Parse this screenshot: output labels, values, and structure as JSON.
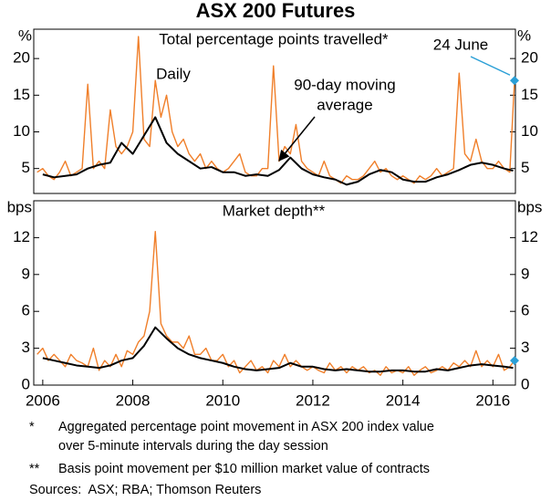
{
  "title": "ASX 200 Futures",
  "chart_data": [
    {
      "type": "line",
      "subtitle": "Total percentage points travelled*",
      "unit": "%",
      "xlim": [
        2005.8,
        2016.5
      ],
      "ylim": [
        1.6,
        24
      ],
      "yticks": [
        5,
        10,
        15,
        20
      ],
      "series": [
        {
          "name": "Daily",
          "color": "#f07f2a",
          "x": [
            2005.875,
            2006,
            2006.125,
            2006.25,
            2006.375,
            2006.5,
            2006.625,
            2006.75,
            2006.875,
            2007,
            2007.125,
            2007.25,
            2007.375,
            2007.5,
            2007.625,
            2007.75,
            2007.875,
            2008,
            2008.125,
            2008.25,
            2008.375,
            2008.5,
            2008.625,
            2008.75,
            2008.875,
            2009,
            2009.125,
            2009.25,
            2009.375,
            2009.5,
            2009.625,
            2009.75,
            2009.875,
            2010,
            2010.125,
            2010.25,
            2010.375,
            2010.5,
            2010.625,
            2010.75,
            2010.875,
            2011,
            2011.125,
            2011.25,
            2011.375,
            2011.5,
            2011.625,
            2011.75,
            2011.875,
            2012,
            2012.125,
            2012.25,
            2012.375,
            2012.5,
            2012.625,
            2012.75,
            2012.875,
            2013,
            2013.125,
            2013.25,
            2013.375,
            2013.5,
            2013.625,
            2013.75,
            2013.875,
            2014,
            2014.125,
            2014.25,
            2014.375,
            2014.5,
            2014.625,
            2014.75,
            2014.875,
            2015,
            2015.125,
            2015.25,
            2015.375,
            2015.5,
            2015.625,
            2015.75,
            2015.875,
            2016,
            2016.125,
            2016.25,
            2016.375,
            2016.48
          ],
          "values": [
            4.5,
            5,
            4,
            3.5,
            4.5,
            6,
            4,
            4.5,
            5,
            16.5,
            5,
            6,
            5,
            13,
            8,
            7,
            8,
            10,
            23,
            9,
            8,
            17,
            12,
            15,
            10,
            8,
            9,
            7,
            6,
            7,
            5,
            6,
            5,
            4.5,
            5,
            6,
            7,
            4.5,
            4,
            4,
            5,
            5,
            19,
            6,
            8,
            7,
            11,
            6,
            5,
            4.5,
            4,
            6,
            4,
            3.5,
            3,
            4,
            3.5,
            3.5,
            4,
            5,
            6,
            4.5,
            5,
            4,
            3.5,
            4,
            3.5,
            3,
            4,
            3.5,
            4,
            5,
            4,
            4.5,
            5,
            18,
            7,
            6,
            9,
            6,
            5,
            5,
            6,
            5,
            4.5,
            17
          ]
        },
        {
          "name": [
            "90-day moving",
            "average"
          ],
          "color": "#000000",
          "x": [
            2006,
            2006.25,
            2006.5,
            2006.75,
            2007,
            2007.25,
            2007.5,
            2007.75,
            2008,
            2008.25,
            2008.5,
            2008.75,
            2009,
            2009.25,
            2009.5,
            2009.75,
            2010,
            2010.25,
            2010.5,
            2010.75,
            2011,
            2011.25,
            2011.5,
            2011.75,
            2012,
            2012.25,
            2012.5,
            2012.75,
            2013,
            2013.25,
            2013.5,
            2013.75,
            2014,
            2014.25,
            2014.5,
            2014.75,
            2015,
            2015.25,
            2015.5,
            2015.75,
            2016,
            2016.25,
            2016.45
          ],
          "values": [
            4.2,
            3.8,
            4,
            4.2,
            5,
            5.5,
            5.8,
            8.5,
            7,
            9.5,
            12,
            8.5,
            7,
            6,
            5,
            5.2,
            4.5,
            4.5,
            4,
            4.2,
            4,
            4.8,
            6.5,
            5,
            4.2,
            3.8,
            3.5,
            2.8,
            3.2,
            4.2,
            4.8,
            4.5,
            3.5,
            3.2,
            3.2,
            3.8,
            4.2,
            4.8,
            5.5,
            5.8,
            5.5,
            5,
            4.7
          ]
        }
      ],
      "marker": {
        "label": "24 June",
        "color": "#2a9fd6",
        "x": 2016.48,
        "value": 17
      }
    },
    {
      "type": "line",
      "subtitle": "Market depth**",
      "unit": "bps",
      "xlim": [
        2005.8,
        2016.5
      ],
      "ylim": [
        0,
        15
      ],
      "yticks": [
        0,
        3,
        6,
        9,
        12
      ],
      "xticks": [
        2006,
        2008,
        2010,
        2012,
        2014,
        2016
      ],
      "series": [
        {
          "color": "#f07f2a",
          "x": [
            2005.875,
            2006,
            2006.125,
            2006.25,
            2006.375,
            2006.5,
            2006.625,
            2006.75,
            2006.875,
            2007,
            2007.125,
            2007.25,
            2007.375,
            2007.5,
            2007.625,
            2007.75,
            2007.875,
            2008,
            2008.125,
            2008.25,
            2008.375,
            2008.5,
            2008.625,
            2008.75,
            2008.875,
            2009,
            2009.125,
            2009.25,
            2009.375,
            2009.5,
            2009.625,
            2009.75,
            2009.875,
            2010,
            2010.125,
            2010.25,
            2010.375,
            2010.5,
            2010.625,
            2010.75,
            2010.875,
            2011,
            2011.125,
            2011.25,
            2011.375,
            2011.5,
            2011.625,
            2011.75,
            2011.875,
            2012,
            2012.125,
            2012.25,
            2012.375,
            2012.5,
            2012.625,
            2012.75,
            2012.875,
            2013,
            2013.125,
            2013.25,
            2013.375,
            2013.5,
            2013.625,
            2013.75,
            2013.875,
            2014,
            2014.125,
            2014.25,
            2014.375,
            2014.5,
            2014.625,
            2014.75,
            2014.875,
            2015,
            2015.125,
            2015.25,
            2015.375,
            2015.5,
            2015.625,
            2015.75,
            2015.875,
            2016,
            2016.125,
            2016.25,
            2016.375,
            2016.48
          ],
          "values": [
            2.5,
            3,
            2,
            2.5,
            2,
            1.5,
            2.5,
            2,
            1.8,
            1.5,
            3,
            1.2,
            2,
            1.5,
            2.5,
            1.5,
            2.8,
            2.5,
            3.5,
            4,
            6,
            12.5,
            5,
            4,
            3.5,
            3.5,
            3,
            4,
            2.5,
            2.5,
            3,
            2,
            2,
            2.5,
            1.5,
            2,
            1,
            1.5,
            2,
            1.2,
            1.5,
            1,
            2,
            1.5,
            2.5,
            1.5,
            2,
            1.5,
            1.2,
            1.5,
            1.2,
            1,
            1.8,
            1.2,
            1.5,
            1,
            1.5,
            1.2,
            1.5,
            1,
            1.2,
            0.8,
            1.5,
            1,
            1.2,
            1,
            1.5,
            0.8,
            1.2,
            1.5,
            1,
            1.2,
            1.5,
            1.2,
            1.8,
            1.5,
            2,
            1.5,
            2.8,
            1.5,
            2,
            1.5,
            2.5,
            1.2,
            1.5,
            2
          ]
        },
        {
          "color": "#000000",
          "x": [
            2006,
            2006.25,
            2006.5,
            2006.75,
            2007,
            2007.25,
            2007.5,
            2007.75,
            2008,
            2008.25,
            2008.5,
            2008.75,
            2009,
            2009.25,
            2009.5,
            2009.75,
            2010,
            2010.25,
            2010.5,
            2010.75,
            2011,
            2011.25,
            2011.5,
            2011.75,
            2012,
            2012.25,
            2012.5,
            2012.75,
            2013,
            2013.25,
            2013.5,
            2013.75,
            2014,
            2014.25,
            2014.5,
            2014.75,
            2015,
            2015.25,
            2015.5,
            2015.75,
            2016,
            2016.25,
            2016.45
          ],
          "values": [
            2.2,
            2,
            1.8,
            1.6,
            1.5,
            1.4,
            1.6,
            2,
            2.2,
            3.2,
            4.7,
            3.8,
            3,
            2.5,
            2.2,
            2,
            1.8,
            1.5,
            1.3,
            1.2,
            1.3,
            1.4,
            1.8,
            1.5,
            1.5,
            1.3,
            1.2,
            1.3,
            1.2,
            1.1,
            1.1,
            1.2,
            1.2,
            1.1,
            1.1,
            1.3,
            1.2,
            1.4,
            1.6,
            1.7,
            1.6,
            1.5,
            1.4
          ]
        }
      ],
      "marker": {
        "color": "#2a9fd6",
        "x": 2016.48,
        "value": 2
      }
    }
  ],
  "notes": [
    {
      "mark": "*",
      "lines": [
        "Aggregated percentage point movement in ASX 200 index value",
        "over 5-minute intervals during the day session"
      ]
    },
    {
      "mark": "**",
      "lines": [
        "Basis point movement per $10 million market value of contracts"
      ]
    }
  ],
  "sources": "Sources:  ASX; RBA; Thomson Reuters"
}
